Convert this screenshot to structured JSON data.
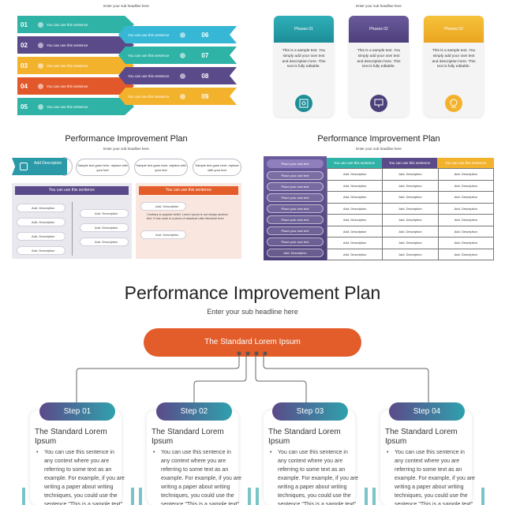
{
  "slide1": {
    "subtitle": "Enter your sub headline here",
    "rows_left": [
      {
        "num": "01",
        "text": "You can use this sentence",
        "color": "#2fb3a6"
      },
      {
        "num": "02",
        "text": "You can use this sentence",
        "color": "#5b4a89"
      },
      {
        "num": "03",
        "text": "You can use this sentence",
        "color": "#f2b22c"
      },
      {
        "num": "04",
        "text": "You can use this sentence",
        "color": "#e3582a"
      },
      {
        "num": "05",
        "text": "You can use this sentence",
        "color": "#2fb3a6"
      }
    ],
    "rows_right": [
      {
        "num": "06",
        "text": "You can use this sentence",
        "color": "#36b7d6"
      },
      {
        "num": "07",
        "text": "You can use this sentence",
        "color": "#2fb3a6"
      },
      {
        "num": "08",
        "text": "You can use this sentence",
        "color": "#5b4a89"
      },
      {
        "num": "09",
        "text": "You can use this sentence",
        "color": "#f2b22c"
      }
    ]
  },
  "slide2": {
    "subtitle": "Enter your sub headline here",
    "phases": [
      {
        "label": "Phases 01",
        "text": "This is a sample text. You simply add your own text and description here. This text is fully editable.",
        "color": "#2a9aa8",
        "icon": "certificate-icon"
      },
      {
        "label": "Phases 02",
        "text": "This is a sample text. You simply add your own text and description here. This text is fully editable.",
        "color": "#5b4a89",
        "icon": "presentation-icon"
      },
      {
        "label": "Phases 03",
        "text": "This is a sample text. You simply add your own text and description here. This text is fully editable.",
        "color": "#f2b22c",
        "icon": "award-icon"
      }
    ]
  },
  "slide3": {
    "title": "Performance Improvement Plan",
    "subtitle": "Enter your sub headline here",
    "tab_label": "Add Description",
    "pills": [
      "Sample text goes here, replace with your text",
      "Sample text goes here, replace with your text",
      "Sample text goes here, replace with your text"
    ],
    "panel_left_header": "You can use this sentence",
    "panel_right_header": "You can use this sentence",
    "left_items": [
      "Add. Description",
      "Add. Description",
      "Add. Description",
      "Add. Description"
    ],
    "middle_items": [
      "Add. Description",
      "Add. Description",
      "Add. Description"
    ],
    "right_items": [
      "Add. Description",
      "Add. Description"
    ],
    "right_text": "Contrary to popular belief, Lorem Ipsum is not simply random text. It has roots in a piece of classical Latin literature from"
  },
  "slide4": {
    "title": "Performance Improvement Plan",
    "subtitle": "Enter your sub headline here",
    "side_items": [
      "Place your own text",
      "Place your own text",
      "Place your own text",
      "Place your own text",
      "Place your own text",
      "Place your own text",
      "Place your own text",
      "Add. Description",
      "Add. Description"
    ],
    "side_header": "Place your own text",
    "columns": [
      {
        "header": "You can use this sentence",
        "color": "#2fb3a6"
      },
      {
        "header": "You can use this sentence",
        "color": "#5b4a89"
      },
      {
        "header": "You can use this sentence",
        "color": "#f2b22c"
      }
    ],
    "cell_text": "Add. Description"
  },
  "slide5": {
    "title": "Performance Improvement Plan",
    "subtitle": "Enter your sub headline here",
    "root_label": "The Standard Lorem Ipsum",
    "root_color": "#e25d2a",
    "steps": [
      {
        "label": "Step 01",
        "heading": "The Standard Lorem Ipsum",
        "body": "You can use this sentence in any context where you are referring to some text as an example. For example, if you are writing a paper about writing techniques, you could use the sentence \"This is a sample text\" to introduce a section where"
      },
      {
        "label": "Step 02",
        "heading": "The Standard Lorem Ipsum",
        "body": "You can use this sentence in any context where you are referring to some text as an example. For example, if you are writing a paper about writing techniques, you could use the sentence \"This is a sample text\" to introduce a section where"
      },
      {
        "label": "Step 03",
        "heading": "The Standard Lorem Ipsum",
        "body": "You can use this sentence in any context where you are referring to some text as an example. For example, if you are writing a paper about writing techniques, you could use the sentence \"This is a sample text\" to introduce a section where"
      },
      {
        "label": "Step 04",
        "heading": "The Standard Lorem Ipsum",
        "body": "You can use this sentence in any context where you are referring to some text as an example. For example, if you are writing a paper about writing techniques, you could use the sentence \"This is a sample text\" to introduce a section where"
      }
    ]
  }
}
